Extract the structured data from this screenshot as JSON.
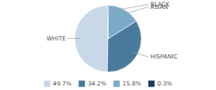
{
  "chart_data": {
    "type": "pie",
    "categories": [
      "WHITE",
      "HISPANIC",
      "ASIAN",
      "BLACK"
    ],
    "values": [
      49.7,
      34.2,
      15.8,
      0.3
    ],
    "value_labels": [
      "49.7%",
      "34.2%",
      "15.8%",
      "0.3%"
    ],
    "colors": [
      "#c8d8e8",
      "#4a7a9b",
      "#7aaac8",
      "#1a3a5c"
    ],
    "legend": "bottom"
  }
}
